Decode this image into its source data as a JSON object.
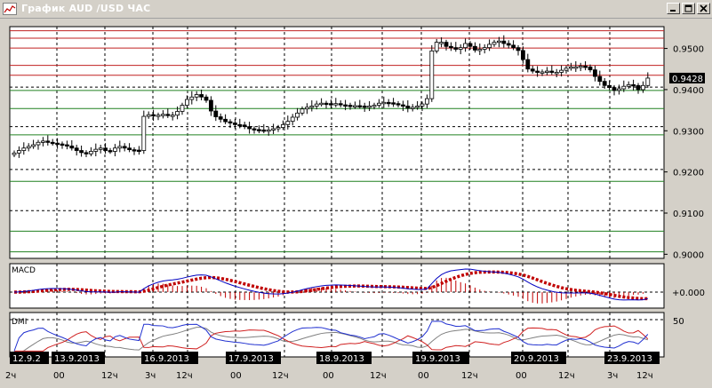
{
  "window": {
    "title": "График AUD /USD ЧАС",
    "buttons": [
      "minimize",
      "restore",
      "close"
    ],
    "icons": {
      "app": "chart-icon",
      "minimize": "minimize-icon",
      "restore": "restore-icon",
      "close": "close-icon"
    }
  },
  "chart_data": {
    "type": "candlestick",
    "instrument": "AUD/USD",
    "timeframe": "ЧАС",
    "price_axis": {
      "ylim": [
        0.899,
        0.9553
      ],
      "ticks": [
        "0.9500",
        "0.9400",
        "0.9300",
        "0.9200",
        "0.9100",
        "0.9000"
      ],
      "tick_values": [
        0.95,
        0.94,
        0.93,
        0.92,
        0.91,
        0.9
      ]
    },
    "current_price": {
      "label": "0.9428",
      "value": 0.9428
    },
    "resistance_lines": [
      0.9543,
      0.9525,
      0.9501,
      0.9459,
      0.9435
    ],
    "support_lines": [
      0.9398,
      0.9354,
      0.929,
      0.9177,
      0.9056,
      0.9006
    ],
    "dotted_levels": [
      0.9406,
      0.931,
      0.9206,
      0.9106
    ],
    "x_range": [
      0,
      126
    ],
    "candle_step": 1,
    "closes": [
      0.9246,
      0.9252,
      0.9258,
      0.9262,
      0.9266,
      0.9272,
      0.9275,
      0.9272,
      0.927,
      0.9268,
      0.9266,
      0.9263,
      0.9258,
      0.9252,
      0.9247,
      0.9244,
      0.925,
      0.9255,
      0.9258,
      0.9252,
      0.925,
      0.9258,
      0.9262,
      0.9258,
      0.9254,
      0.9253,
      0.9252,
      0.9335,
      0.9339,
      0.9336,
      0.9338,
      0.934,
      0.9337,
      0.9338,
      0.9347,
      0.9362,
      0.9376,
      0.9382,
      0.9388,
      0.9382,
      0.9374,
      0.9348,
      0.9334,
      0.9328,
      0.9322,
      0.9319,
      0.9315,
      0.9314,
      0.931,
      0.9305,
      0.9303,
      0.9302,
      0.93,
      0.9302,
      0.9305,
      0.9308,
      0.9315,
      0.9323,
      0.9333,
      0.9343,
      0.9353,
      0.9357,
      0.936,
      0.9365,
      0.9367,
      0.9366,
      0.9365,
      0.9366,
      0.9363,
      0.9362,
      0.9361,
      0.9361,
      0.936,
      0.9358,
      0.936,
      0.9362,
      0.9367,
      0.9369,
      0.9368,
      0.9366,
      0.9363,
      0.936,
      0.9355,
      0.9357,
      0.936,
      0.9365,
      0.9378,
      0.9494,
      0.9515,
      0.9515,
      0.9505,
      0.9502,
      0.9498,
      0.9502,
      0.9512,
      0.9505,
      0.9496,
      0.9498,
      0.9502,
      0.951,
      0.9515,
      0.9518,
      0.9512,
      0.9508,
      0.9502,
      0.9495,
      0.9473,
      0.945,
      0.9445,
      0.9443,
      0.9443,
      0.9445,
      0.9442,
      0.9442,
      0.9447,
      0.9452,
      0.9455,
      0.9455,
      0.9457,
      0.9455,
      0.9448,
      0.9432,
      0.942,
      0.941,
      0.9405,
      0.9398,
      0.9402,
      0.9408,
      0.9412,
      0.941,
      0.94,
      0.941,
      0.9428
    ],
    "macd_panel": {
      "label": "MACD",
      "zero_label": "+0.000"
    },
    "dmi_panel": {
      "label": "DMI",
      "level_label": "50",
      "series_colors": {
        "plus_di": "#2030d0",
        "minus_di": "#d02020",
        "adx": "#808080"
      }
    },
    "date_labels": [
      "12.9.2",
      "13.9.2013",
      "16.9.2013",
      "17.9.2013",
      "18.9.2013",
      "19.9.2013",
      "20.9.2013",
      "23.9.2013"
    ],
    "hour_labels": [
      "2ч",
      "00",
      "12ч",
      "3ч",
      "12ч",
      "00",
      "12ч",
      "00",
      "12ч",
      "00",
      "12ч",
      "00",
      "12ч",
      "3ч",
      "12ч"
    ],
    "colors": {
      "resistance": "#c02020",
      "support": "#208020",
      "candle": "#000000",
      "macd_line": "#0000c0",
      "macd_signal": "#c00000",
      "plot_bg": "#ffffff",
      "frame_bg": "#d4d0c8",
      "price_badge_bg": "#000000",
      "price_badge_fg": "#ffffff"
    }
  }
}
